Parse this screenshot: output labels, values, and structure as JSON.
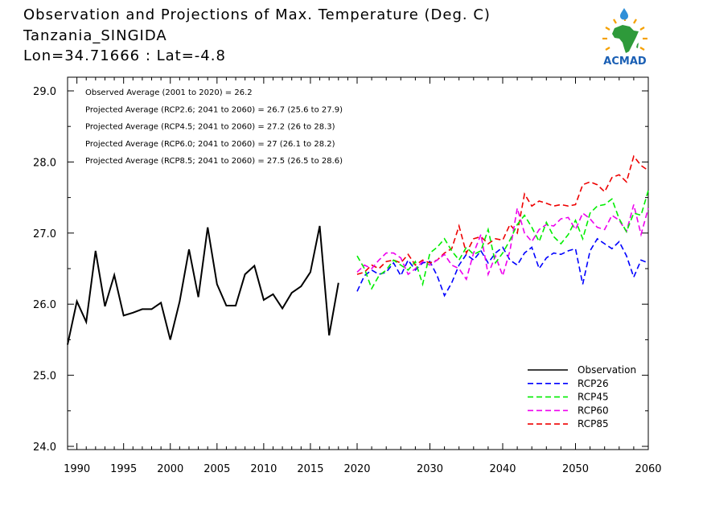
{
  "title": {
    "line1": "Observation and Projections of Max. Temperature (Deg. C)",
    "line2": "Tanzania_SINGIDA",
    "line3": "Lon=34.71666 : Lat=-4.8"
  },
  "logo": {
    "text": "ACMAD",
    "icon": "africa-map-logo-icon"
  },
  "chart_data": {
    "type": "line",
    "xlim": [
      1989,
      2060
    ],
    "ylim": [
      24.0,
      29.0
    ],
    "x_ticks": [
      1990,
      1995,
      2000,
      2005,
      2010,
      2015,
      2020,
      2030,
      2040,
      2050,
      2060
    ],
    "y_ticks": [
      24.0,
      25.0,
      26.0,
      27.0,
      28.0,
      29.0
    ],
    "y_tick_labels": [
      "24.0",
      "25.0",
      "26.0",
      "27.0",
      "28.0",
      "29.0"
    ],
    "grid": false,
    "legend_position": "bottom-right",
    "annotations": [
      "Observed Average (2001 to 2020) = 26.2",
      "Projected Average (RCP2.6; 2041 to 2060) = 26.7 (25.6 to 27.9)",
      "Projected Average (RCP4.5; 2041 to 2060) = 27.2 (26 to 28.3)",
      "Projected Average (RCP6.0; 2041 to 2060) = 27 (26.1 to 28.2)",
      "Projected Average (RCP8.5; 2041 to 2060) = 27.5 (26.5 to 28.6)"
    ],
    "series": [
      {
        "name": "Observation",
        "color": "#000000",
        "dashed": false,
        "x": [
          1989,
          1990,
          1991,
          1992,
          1993,
          1994,
          1995,
          1996,
          1997,
          1998,
          1999,
          2000,
          2001,
          2002,
          2003,
          2004,
          2005,
          2006,
          2007,
          2008,
          2009,
          2010,
          2011,
          2012,
          2013,
          2014,
          2015,
          2016,
          2017,
          2018,
          2019
        ],
        "y": [
          25.43,
          26.04,
          25.75,
          26.75,
          25.97,
          26.41,
          25.84,
          25.88,
          25.93,
          25.93,
          26.02,
          25.5,
          26.04,
          26.77,
          26.1,
          27.08,
          26.28,
          25.98,
          25.98,
          26.42,
          26.54,
          26.06,
          26.14,
          25.94,
          26.16,
          26.25,
          26.45,
          27.1,
          25.56,
          26.3,
          null
        ]
      },
      {
        "name": "RCP26",
        "color": "#0000ff",
        "dashed": true,
        "x": [
          2020,
          2021,
          2022,
          2023,
          2024,
          2025,
          2026,
          2027,
          2028,
          2029,
          2030,
          2031,
          2032,
          2033,
          2034,
          2035,
          2036,
          2037,
          2038,
          2039,
          2040,
          2041,
          2042,
          2043,
          2044,
          2045,
          2046,
          2047,
          2048,
          2049,
          2050,
          2051,
          2052,
          2053,
          2054,
          2055,
          2056,
          2057,
          2058,
          2059,
          2060
        ],
        "y": [
          26.18,
          26.4,
          26.48,
          26.42,
          26.45,
          26.58,
          26.4,
          26.62,
          26.48,
          26.58,
          26.6,
          26.4,
          26.12,
          26.3,
          26.55,
          26.7,
          26.62,
          26.75,
          26.58,
          26.72,
          26.8,
          26.62,
          26.55,
          26.72,
          26.8,
          26.5,
          26.65,
          26.72,
          26.7,
          26.75,
          26.78,
          26.28,
          26.75,
          26.92,
          26.85,
          26.78,
          26.88,
          26.68,
          26.38,
          26.62,
          26.58
        ]
      },
      {
        "name": "RCP45",
        "color": "#00ee00",
        "dashed": true,
        "x": [
          2020,
          2021,
          2022,
          2023,
          2024,
          2025,
          2026,
          2027,
          2028,
          2029,
          2030,
          2031,
          2032,
          2033,
          2034,
          2035,
          2036,
          2037,
          2038,
          2039,
          2040,
          2041,
          2042,
          2043,
          2044,
          2045,
          2046,
          2047,
          2048,
          2049,
          2050,
          2051,
          2052,
          2053,
          2054,
          2055,
          2056,
          2057,
          2058,
          2059,
          2060
        ],
        "y": [
          26.68,
          26.5,
          26.22,
          26.4,
          26.48,
          26.62,
          26.55,
          26.48,
          26.6,
          26.28,
          26.72,
          26.8,
          26.92,
          26.75,
          26.62,
          26.8,
          26.7,
          26.75,
          27.05,
          26.58,
          26.72,
          26.9,
          27.12,
          27.25,
          27.08,
          26.88,
          27.15,
          26.95,
          26.85,
          26.98,
          27.18,
          26.92,
          27.28,
          27.38,
          27.4,
          27.48,
          27.2,
          27.02,
          27.28,
          27.25,
          27.6
        ]
      },
      {
        "name": "RCP60",
        "color": "#ee00ee",
        "dashed": true,
        "x": [
          2020,
          2021,
          2022,
          2023,
          2024,
          2025,
          2026,
          2027,
          2028,
          2029,
          2030,
          2031,
          2032,
          2033,
          2034,
          2035,
          2036,
          2037,
          2038,
          2039,
          2040,
          2041,
          2042,
          2043,
          2044,
          2045,
          2046,
          2047,
          2048,
          2049,
          2050,
          2051,
          2052,
          2053,
          2054,
          2055,
          2056,
          2057,
          2058,
          2059,
          2060
        ],
        "y": [
          26.45,
          26.55,
          26.5,
          26.62,
          26.72,
          26.72,
          26.65,
          26.42,
          26.5,
          26.6,
          26.55,
          26.62,
          26.7,
          26.55,
          26.5,
          26.35,
          26.72,
          26.98,
          26.42,
          26.68,
          26.4,
          26.75,
          27.35,
          27.0,
          26.88,
          27.05,
          27.12,
          27.1,
          27.2,
          27.22,
          27.05,
          27.28,
          27.2,
          27.08,
          27.05,
          27.25,
          27.18,
          27.02,
          27.4,
          26.98,
          27.35
        ]
      },
      {
        "name": "RCP85",
        "color": "#ee0000",
        "dashed": true,
        "x": [
          2020,
          2021,
          2022,
          2023,
          2024,
          2025,
          2026,
          2027,
          2028,
          2029,
          2030,
          2031,
          2032,
          2033,
          2034,
          2035,
          2036,
          2037,
          2038,
          2039,
          2040,
          2041,
          2042,
          2043,
          2044,
          2045,
          2046,
          2047,
          2048,
          2049,
          2050,
          2051,
          2052,
          2053,
          2054,
          2055,
          2056,
          2057,
          2058,
          2059,
          2060
        ],
        "y": [
          26.42,
          26.45,
          26.55,
          26.5,
          26.6,
          26.62,
          26.58,
          26.7,
          26.55,
          26.62,
          26.58,
          26.62,
          26.72,
          26.78,
          27.1,
          26.72,
          26.92,
          26.95,
          26.85,
          26.92,
          26.9,
          27.12,
          27.0,
          27.55,
          27.38,
          27.45,
          27.42,
          27.38,
          27.4,
          27.38,
          27.4,
          27.68,
          27.72,
          27.68,
          27.58,
          27.78,
          27.82,
          27.72,
          28.08,
          27.95,
          27.88
        ]
      }
    ]
  }
}
